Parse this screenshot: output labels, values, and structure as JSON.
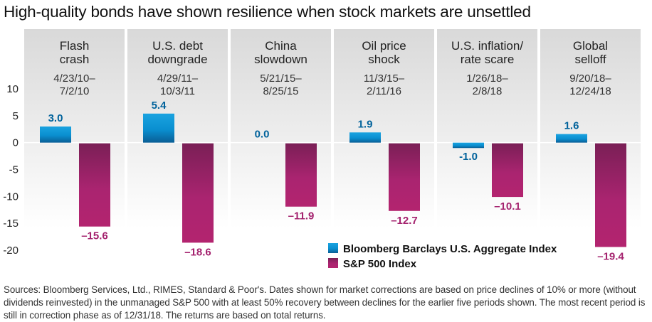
{
  "title": "High-quality bonds have shown resilience when stock markets are unsettled",
  "footnote": "Sources: Bloomberg Services, Ltd., RIMES, Standard & Poor's. Dates shown for market corrections are based on price declines of 10% or more (without dividends reinvested) in the unmanaged S&P 500 with at least 50% recovery between declines for the earlier five periods shown. The most recent period is still in correction phase as of 12/31/18. The returns are based on total returns.",
  "colors": {
    "bond": "#0a8fd0",
    "bond_dark": "#0a5e95",
    "sp": "#b3246f",
    "sp_dark": "#7a1f56",
    "bond_label": "#00629b",
    "sp_label": "#a4226e"
  },
  "chart_data": {
    "type": "bar",
    "title": "High-quality bonds have shown resilience when stock markets are unsettled",
    "xlabel": "",
    "ylabel": "",
    "ylim": [
      -20,
      10
    ],
    "yticks": [
      10,
      5,
      0,
      -5,
      -10,
      -15,
      -20
    ],
    "grid": false,
    "legend_position": "bottom-right",
    "categories": [
      {
        "title": [
          "Flash",
          "crash"
        ],
        "dates": [
          "4/23/10–",
          "7/2/10"
        ]
      },
      {
        "title": [
          "U.S. debt",
          "downgrade"
        ],
        "dates": [
          "4/29/11–",
          "10/3/11"
        ]
      },
      {
        "title": [
          "China",
          "slowdown"
        ],
        "dates": [
          "5/21/15–",
          "8/25/15"
        ]
      },
      {
        "title": [
          "Oil price",
          "shock"
        ],
        "dates": [
          "11/3/15–",
          "2/11/16"
        ]
      },
      {
        "title": [
          "U.S. inflation/",
          "rate scare"
        ],
        "dates": [
          "1/26/18–",
          "2/8/18"
        ]
      },
      {
        "title": [
          "Global",
          "selloff"
        ],
        "dates": [
          "9/20/18–",
          "12/24/18"
        ]
      }
    ],
    "series": [
      {
        "name": "Bloomberg Barclays U.S. Aggregate Index",
        "values": [
          3.0,
          5.4,
          0.0,
          1.9,
          -1.0,
          1.6
        ],
        "labels": [
          "3.0",
          "5.4",
          "0.0",
          "1.9",
          "-1.0",
          "1.6"
        ]
      },
      {
        "name": "S&P 500 Index",
        "values": [
          -15.6,
          -18.6,
          -11.9,
          -12.7,
          -10.1,
          -19.4
        ],
        "labels": [
          "–15.6",
          "–18.6",
          "–11.9",
          "–12.7",
          "–10.1",
          "–19.4"
        ]
      }
    ]
  }
}
